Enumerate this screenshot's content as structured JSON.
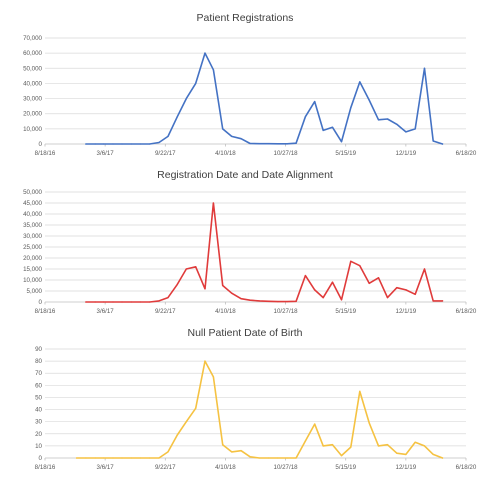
{
  "chart_data": [
    {
      "type": "line",
      "title": "Patient Registrations",
      "xlabel": "",
      "ylabel": "",
      "x_ticks": [
        "8/18/16",
        "3/6/17",
        "9/22/17",
        "4/10/18",
        "10/27/18",
        "5/15/19",
        "12/1/19",
        "6/18/20"
      ],
      "y_ticks": [
        "0",
        "10,000",
        "20,000",
        "30,000",
        "40,000",
        "50,000",
        "60,000",
        "70,000"
      ],
      "xlim": [
        "2016-08-18",
        "2020-06-18"
      ],
      "ylim": [
        0,
        70000
      ],
      "grid": "horizontal",
      "legend": "none",
      "series": [
        {
          "color": "#4472c4",
          "points": [
            [
              "2017-01-01",
              0
            ],
            [
              "2017-02-01",
              0
            ],
            [
              "2017-03-01",
              0
            ],
            [
              "2017-04-01",
              0
            ],
            [
              "2017-05-01",
              0
            ],
            [
              "2017-06-01",
              0
            ],
            [
              "2017-07-01",
              0
            ],
            [
              "2017-08-01",
              0
            ],
            [
              "2017-09-01",
              1000
            ],
            [
              "2017-10-01",
              5000
            ],
            [
              "2017-11-01",
              18000
            ],
            [
              "2017-12-01",
              30000
            ],
            [
              "2018-01-01",
              40000
            ],
            [
              "2018-02-01",
              60000
            ],
            [
              "2018-03-01",
              49000
            ],
            [
              "2018-04-01",
              10000
            ],
            [
              "2018-05-01",
              5000
            ],
            [
              "2018-06-01",
              3500
            ],
            [
              "2018-07-01",
              300
            ],
            [
              "2018-08-01",
              200
            ],
            [
              "2018-09-01",
              200
            ],
            [
              "2018-10-01",
              100
            ],
            [
              "2018-11-01",
              100
            ],
            [
              "2018-12-01",
              500
            ],
            [
              "2019-01-01",
              18000
            ],
            [
              "2019-02-01",
              28000
            ],
            [
              "2019-03-01",
              9000
            ],
            [
              "2019-04-01",
              11000
            ],
            [
              "2019-05-01",
              1500
            ],
            [
              "2019-06-01",
              24000
            ],
            [
              "2019-07-01",
              41000
            ],
            [
              "2019-08-01",
              29000
            ],
            [
              "2019-09-01",
              16000
            ],
            [
              "2019-10-01",
              16500
            ],
            [
              "2019-11-01",
              13000
            ],
            [
              "2019-12-01",
              8000
            ],
            [
              "2020-01-01",
              10000
            ],
            [
              "2020-02-01",
              50000
            ],
            [
              "2020-03-01",
              2000
            ],
            [
              "2020-04-01",
              0
            ]
          ]
        }
      ]
    },
    {
      "type": "line",
      "title": "Registration Date and Date Alignment",
      "xlabel": "",
      "ylabel": "",
      "x_ticks": [
        "8/18/16",
        "3/6/17",
        "9/22/17",
        "4/10/18",
        "10/27/18",
        "5/15/19",
        "12/1/19",
        "6/18/20"
      ],
      "y_ticks": [
        "0",
        "5,000",
        "10,000",
        "15,000",
        "20,000",
        "25,000",
        "30,000",
        "35,000",
        "40,000",
        "45,000",
        "50,000"
      ],
      "xlim": [
        "2016-08-18",
        "2020-06-18"
      ],
      "ylim": [
        0,
        50000
      ],
      "grid": "horizontal",
      "legend": "none",
      "series": [
        {
          "color": "#e03b3b",
          "points": [
            [
              "2017-01-01",
              0
            ],
            [
              "2017-02-01",
              0
            ],
            [
              "2017-03-01",
              0
            ],
            [
              "2017-04-01",
              0
            ],
            [
              "2017-05-01",
              0
            ],
            [
              "2017-06-01",
              0
            ],
            [
              "2017-07-01",
              0
            ],
            [
              "2017-08-01",
              0
            ],
            [
              "2017-09-01",
              500
            ],
            [
              "2017-10-01",
              2000
            ],
            [
              "2017-11-01",
              8000
            ],
            [
              "2017-12-01",
              15000
            ],
            [
              "2018-01-01",
              16000
            ],
            [
              "2018-02-01",
              6000
            ],
            [
              "2018-03-01",
              45000
            ],
            [
              "2018-04-01",
              7500
            ],
            [
              "2018-05-01",
              4000
            ],
            [
              "2018-06-01",
              1500
            ],
            [
              "2018-07-01",
              800
            ],
            [
              "2018-08-01",
              500
            ],
            [
              "2018-09-01",
              300
            ],
            [
              "2018-10-01",
              200
            ],
            [
              "2018-11-01",
              200
            ],
            [
              "2018-12-01",
              300
            ],
            [
              "2019-01-01",
              12000
            ],
            [
              "2019-02-01",
              5500
            ],
            [
              "2019-03-01",
              2000
            ],
            [
              "2019-04-01",
              9000
            ],
            [
              "2019-05-01",
              1000
            ],
            [
              "2019-06-01",
              18500
            ],
            [
              "2019-07-01",
              16500
            ],
            [
              "2019-08-01",
              8500
            ],
            [
              "2019-09-01",
              11000
            ],
            [
              "2019-10-01",
              2000
            ],
            [
              "2019-11-01",
              6500
            ],
            [
              "2019-12-01",
              5500
            ],
            [
              "2020-01-01",
              3500
            ],
            [
              "2020-02-01",
              15000
            ],
            [
              "2020-03-01",
              500
            ],
            [
              "2020-04-01",
              500
            ]
          ]
        }
      ]
    },
    {
      "type": "line",
      "title": "Null Patient Date of Birth",
      "xlabel": "",
      "ylabel": "",
      "x_ticks": [
        "8/18/16",
        "3/6/17",
        "9/22/17",
        "4/10/18",
        "10/27/18",
        "5/15/19",
        "12/1/19",
        "6/18/20"
      ],
      "y_ticks": [
        "0",
        "10",
        "20",
        "30",
        "40",
        "50",
        "60",
        "70",
        "80",
        "90"
      ],
      "xlim": [
        "2016-08-18",
        "2020-06-18"
      ],
      "ylim": [
        0,
        90
      ],
      "grid": "horizontal",
      "legend": "none",
      "series": [
        {
          "color": "#f5c242",
          "points": [
            [
              "2016-12-01",
              0
            ],
            [
              "2017-01-01",
              0
            ],
            [
              "2017-02-01",
              0
            ],
            [
              "2017-03-01",
              0
            ],
            [
              "2017-04-01",
              0
            ],
            [
              "2017-05-01",
              0
            ],
            [
              "2017-06-01",
              0
            ],
            [
              "2017-07-01",
              0
            ],
            [
              "2017-08-01",
              0
            ],
            [
              "2017-09-01",
              0
            ],
            [
              "2017-10-01",
              5
            ],
            [
              "2017-11-01",
              19
            ],
            [
              "2017-12-01",
              30
            ],
            [
              "2018-01-01",
              41
            ],
            [
              "2018-02-01",
              80
            ],
            [
              "2018-03-01",
              67
            ],
            [
              "2018-04-01",
              11
            ],
            [
              "2018-05-01",
              5
            ],
            [
              "2018-06-01",
              6
            ],
            [
              "2018-07-01",
              1
            ],
            [
              "2018-08-01",
              0
            ],
            [
              "2018-09-01",
              0
            ],
            [
              "2018-10-01",
              0
            ],
            [
              "2018-11-01",
              0
            ],
            [
              "2018-12-01",
              0
            ],
            [
              "2019-01-01",
              14
            ],
            [
              "2019-02-01",
              28
            ],
            [
              "2019-03-01",
              10
            ],
            [
              "2019-04-01",
              11
            ],
            [
              "2019-05-01",
              2
            ],
            [
              "2019-06-01",
              9
            ],
            [
              "2019-07-01",
              55
            ],
            [
              "2019-08-01",
              29
            ],
            [
              "2019-09-01",
              10
            ],
            [
              "2019-10-01",
              11
            ],
            [
              "2019-11-01",
              4
            ],
            [
              "2019-12-01",
              3
            ],
            [
              "2020-01-01",
              13
            ],
            [
              "2020-02-01",
              10
            ],
            [
              "2020-03-01",
              3
            ],
            [
              "2020-04-01",
              0
            ]
          ]
        }
      ]
    }
  ]
}
